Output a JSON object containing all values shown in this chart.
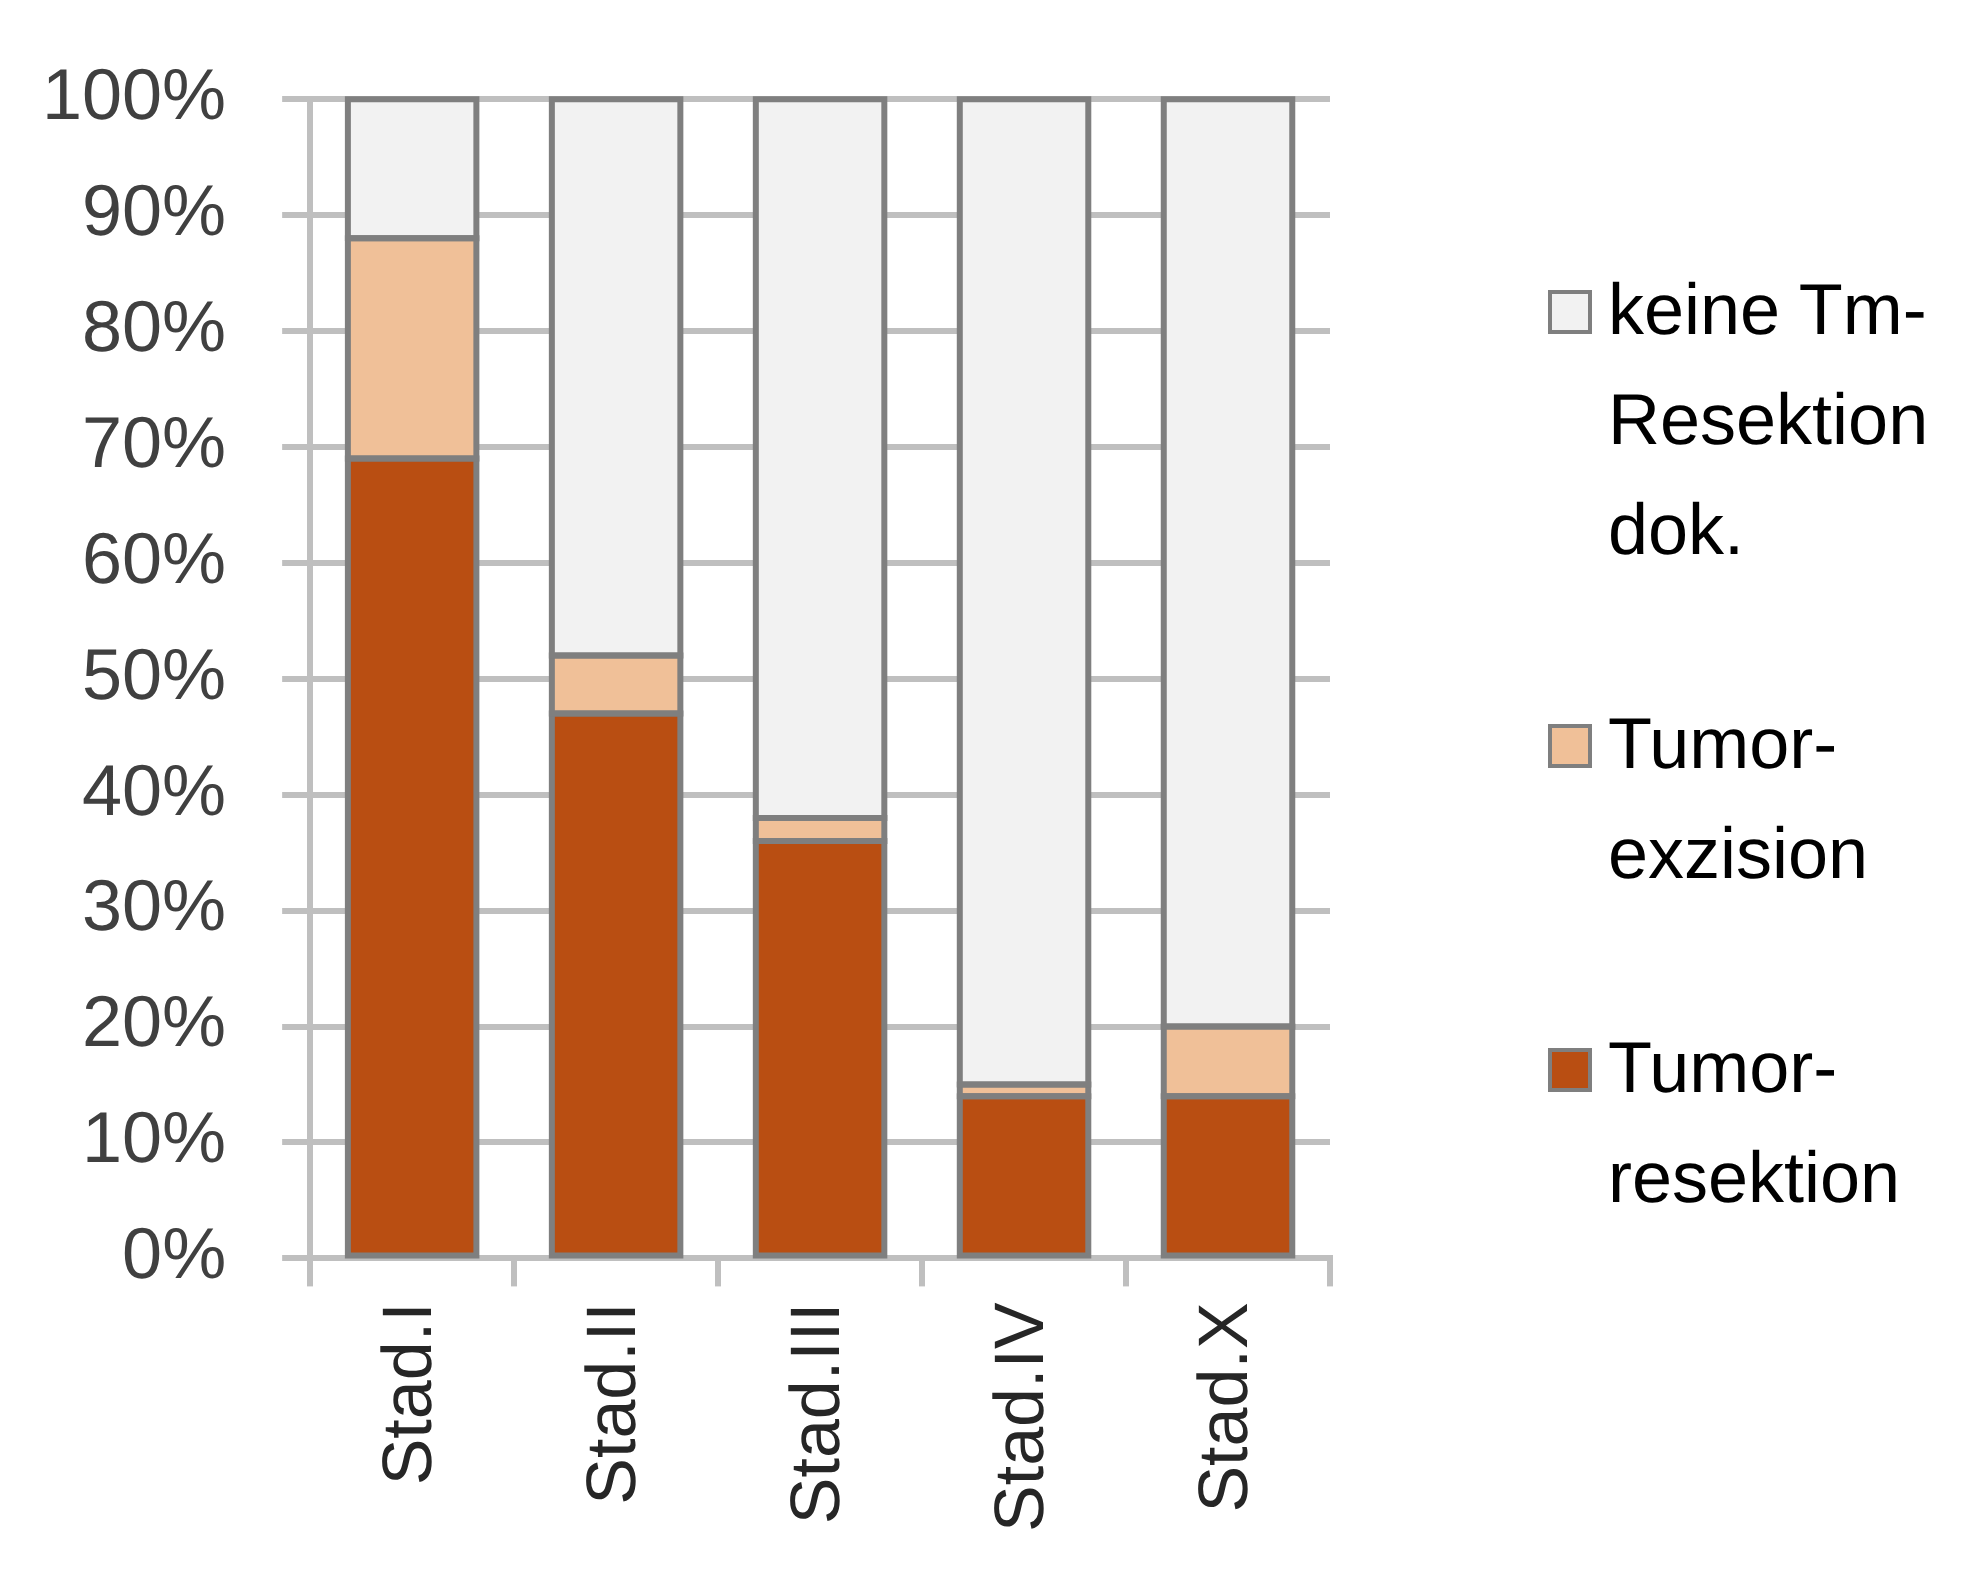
{
  "chart_data": {
    "type": "bar",
    "stacked": true,
    "categories": [
      "Stad.I",
      "Stad.II",
      "Stad.III",
      "Stad.IV",
      "Stad.X"
    ],
    "series": [
      {
        "name": "Tumor-resektion",
        "color": "#b94e12",
        "values": [
          69,
          47,
          36,
          14,
          14
        ]
      },
      {
        "name": "Tumor-exzision",
        "color": "#f0c098",
        "values": [
          19,
          5,
          2,
          1,
          6
        ]
      },
      {
        "name": "keine Tm-Resektion dok.",
        "color": "#f2f2f2",
        "values": [
          12,
          48,
          62,
          85,
          80
        ]
      }
    ],
    "ylim": [
      0,
      100
    ],
    "yticks": [
      {
        "value": 0,
        "label": "0%"
      },
      {
        "value": 10,
        "label": "10%"
      },
      {
        "value": 20,
        "label": "20%"
      },
      {
        "value": 30,
        "label": "30%"
      },
      {
        "value": 40,
        "label": "40%"
      },
      {
        "value": 50,
        "label": "50%"
      },
      {
        "value": 60,
        "label": "60%"
      },
      {
        "value": 70,
        "label": "70%"
      },
      {
        "value": 80,
        "label": "80%"
      },
      {
        "value": 90,
        "label": "90%"
      },
      {
        "value": 100,
        "label": "100%"
      }
    ],
    "grid": "y",
    "legend": "right"
  }
}
